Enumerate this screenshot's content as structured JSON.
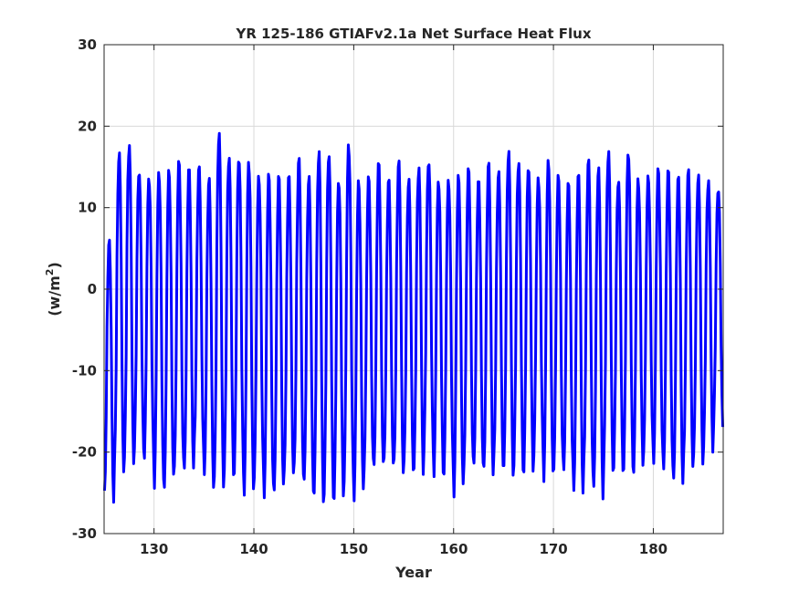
{
  "colors": {
    "series": "#0000ff",
    "axes": "#262626",
    "grid": "#d9d9d9",
    "background": "#ffffff"
  },
  "chart_data": {
    "type": "line",
    "title": "YR 125-186 GTIAFv2.1a Net Surface Heat Flux",
    "xlabel": "Year",
    "ylabel_base": "(w/m",
    "ylabel_sup": "2",
    "ylabel_close": ")",
    "xlim": [
      125,
      187
    ],
    "ylim": [
      -30,
      30
    ],
    "grid": true,
    "xticks": [
      130,
      140,
      150,
      160,
      170,
      180
    ],
    "xtick_labels": [
      "130",
      "140",
      "150",
      "160",
      "170",
      "180"
    ],
    "yticks": [
      -30,
      -20,
      -10,
      0,
      10,
      20,
      30
    ],
    "ytick_labels": [
      "-30",
      "-20",
      "-10",
      "0",
      "10",
      "20",
      "30"
    ],
    "series": [
      {
        "description": "monthly net surface heat flux, one annual cycle per year (max near mid-year, min near year start)",
        "start_year": 125,
        "samples_per_year": 12,
        "annual_max": [
          6.5,
          17.5,
          18.8,
          15.5,
          14.7,
          15.2,
          15.2,
          16.2,
          15.3,
          15.5,
          14.2,
          20.1,
          17.4,
          17.3,
          16.8,
          14.6,
          14.7,
          14.4,
          14.4,
          16.6,
          14.5,
          18.0,
          17.9,
          14.5,
          18.8,
          14.0,
          14.3,
          16.0,
          13.9,
          16.3,
          14.2,
          16.0,
          16.8,
          14.4,
          14.2,
          14.6,
          15.3,
          13.8,
          16.0,
          15.0,
          17.8,
          16.7,
          16.2,
          14.7,
          16.6,
          14.5,
          13.5,
          14.6,
          16.4,
          15.6,
          17.9,
          14.5,
          18.0,
          14.5,
          14.5,
          15.3,
          15.1,
          14.3,
          15.2,
          14.7,
          14.3,
          13.2
        ],
        "annual_min": [
          -26.8,
          -23.0,
          -22.0,
          -20.3,
          -21.3,
          -25.0,
          -25.0,
          -22.7,
          -23.4,
          -20.2,
          -25.0,
          -24.9,
          -23.4,
          -23.4,
          -25.9,
          -23.7,
          -26.4,
          -25.8,
          -23.8,
          -23.6,
          -25.4,
          -26.7,
          -26.3,
          -26.4,
          -24.2,
          -26.6,
          -22.9,
          -22.8,
          -22.4,
          -23.3,
          -22.7,
          -23.3,
          -20.4,
          -23.6,
          -23.2,
          -26.2,
          -22.5,
          -22.7,
          -23.8,
          -22.3,
          -23.4,
          -22.8,
          -23.2,
          -20.9,
          -24.2,
          -22.8,
          -23.2,
          -26.4,
          -23.3,
          -26.4,
          -22.8,
          -22.9,
          -22.8,
          -23.0,
          -20.4,
          -22.2,
          -23.3,
          -25.0,
          -22.5,
          -22.0,
          -20.5,
          -17.5
        ]
      }
    ]
  }
}
